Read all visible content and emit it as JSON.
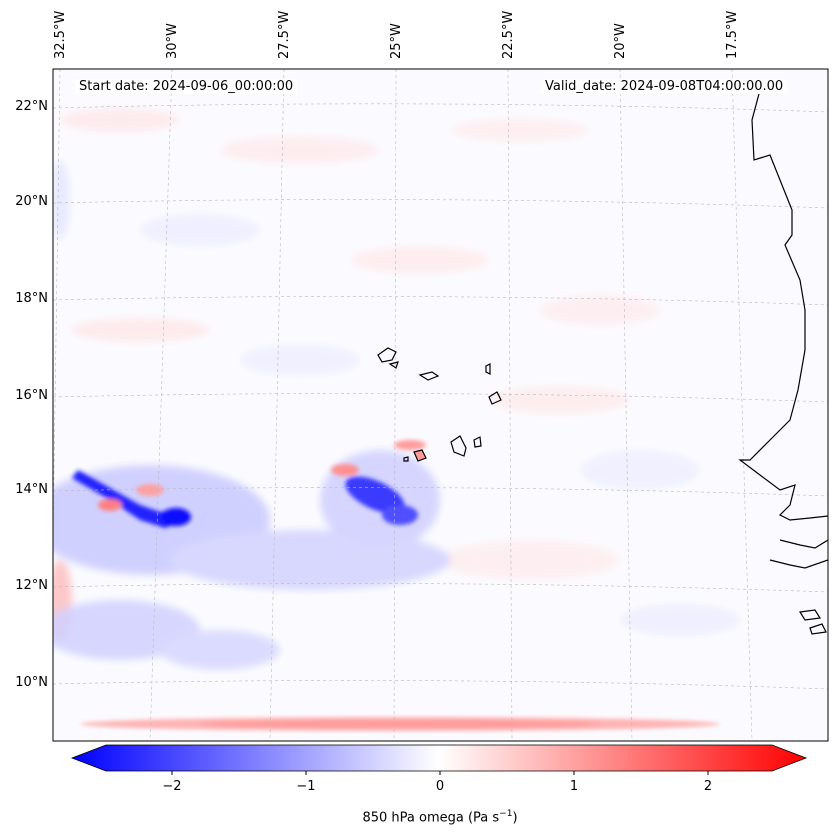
{
  "map": {
    "start_date": "Start date: 2024-09-06_00:00:00",
    "valid_date": "Valid_date: 2024-09-08T04:00:00.00",
    "lon_labels": [
      "32.5°W",
      "30°W",
      "27.5°W",
      "25°W",
      "22.5°W",
      "20°W",
      "17.5°W"
    ],
    "lat_labels": [
      "22°N",
      "20°N",
      "18°N",
      "16°N",
      "14°N",
      "12°N",
      "10°N"
    ],
    "field": "850 hPa omega",
    "unit_prefix": "(Pa s",
    "unit_exp": "−1",
    "unit_suffix": ")"
  },
  "colorbar": {
    "ticks": [
      "−2",
      "−1",
      "0",
      "1",
      "2"
    ],
    "colors": {
      "min": "#0000ff",
      "mid": "#ffffff",
      "max": "#ff0000"
    }
  }
}
